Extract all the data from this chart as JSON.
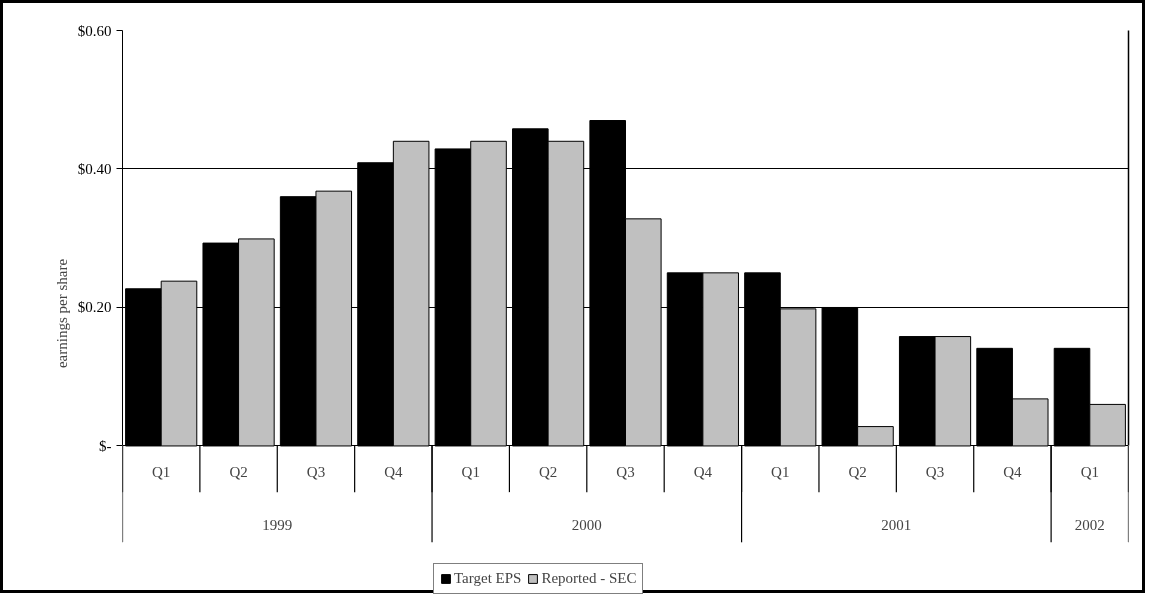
{
  "chart_data": {
    "type": "bar",
    "ylabel": "earnings per share",
    "categories": [
      "Q1",
      "Q2",
      "Q3",
      "Q4",
      "Q1",
      "Q2",
      "Q3",
      "Q4",
      "Q1",
      "Q2",
      "Q3",
      "Q4",
      "Q1"
    ],
    "annotations": [
      "1999",
      "2000",
      "2001",
      "2002"
    ],
    "series": [
      {
        "name": "Target EPS",
        "color": "#000000",
        "values": [
          0.227,
          0.293,
          0.36,
          0.409,
          0.429,
          0.458,
          0.47,
          0.25,
          0.25,
          0.2,
          0.158,
          0.141,
          0.141
        ]
      },
      {
        "name": "Reported - SEC",
        "color": "#c0c0c0",
        "values": [
          0.238,
          0.299,
          0.368,
          0.44,
          0.44,
          0.44,
          0.328,
          0.25,
          0.198,
          0.028,
          0.158,
          0.068,
          0.06
        ]
      }
    ],
    "ylim": [
      0,
      0.6
    ],
    "yticks": [
      {
        "value": 0,
        "label": "$-"
      },
      {
        "value": 0.2,
        "label": "$0.20"
      },
      {
        "value": 0.4,
        "label": "$0.40"
      },
      {
        "value": 0.6,
        "label": "$0.60"
      }
    ],
    "grid": "y",
    "legend": "bottom"
  }
}
